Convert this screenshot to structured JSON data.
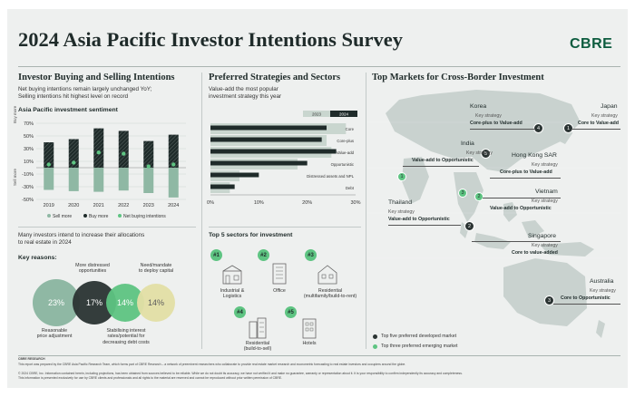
{
  "header": {
    "title": "2024 Asia Pacific Investor Intentions Survey",
    "logo": "CBRE"
  },
  "buying_selling": {
    "title": "Investor Buying and Selling Intentions",
    "subtitle_line1": "Net buying intentions remain largely unchanged YoY;",
    "subtitle_line2": "Selling intentions hit highest level on record",
    "chart_title": "Asia Pacific investment sentiment",
    "axis_top_label": "Buy more",
    "axis_bottom_label": "Sell more"
  },
  "intend": {
    "line1": "Many investors intend to increase their allocations",
    "line2": "to real estate in 2024",
    "key_reasons": "Key reasons:",
    "reasons": [
      {
        "value": "23%",
        "label_lines": [
          "Reasonable",
          "price adjustment"
        ]
      },
      {
        "value": "17%",
        "label_lines": [
          "More distressed",
          "opportunities"
        ]
      },
      {
        "value": "14%",
        "label_lines": [
          "Stabilising interest",
          "rates/potential for",
          "decreasing debt costs"
        ]
      },
      {
        "value": "14%",
        "label_lines": [
          "Need/mandate",
          "to deploy capital"
        ]
      }
    ]
  },
  "strategies": {
    "title": "Preferred Strategies and Sectors",
    "subtitle_line1": "Value-add the most popular",
    "subtitle_line2": "investment strategy this year",
    "legend": [
      "2023",
      "2024"
    ]
  },
  "sectors": {
    "title": "Top 5 sectors for investment",
    "items": [
      {
        "num": "#1",
        "label_lines": [
          "Industrial &",
          "Logistics"
        ]
      },
      {
        "num": "#2",
        "label_lines": [
          "Office"
        ]
      },
      {
        "num": "#3",
        "label_lines": [
          "Residential",
          "(multifamily/build-to-rent)"
        ]
      },
      {
        "num": "#4",
        "label_lines": [
          "Residential",
          "(build-to-sell)"
        ]
      },
      {
        "num": "#5",
        "label_lines": [
          "Hotels"
        ]
      }
    ]
  },
  "markets": {
    "title": "Top Markets for Cross-Border Investment",
    "key_strategy_label": "Key strategy",
    "items": [
      {
        "name": "Korea",
        "strategy": "Core-plus to Value-add",
        "rank": "4",
        "type": "developed"
      },
      {
        "name": "Japan",
        "strategy": "Core to Value-add",
        "rank": "1",
        "type": "developed"
      },
      {
        "name": "India",
        "strategy": "Value-add to Opportunistic",
        "rank": "1",
        "type": "emerging"
      },
      {
        "name": "Hong Kong SAR",
        "strategy": "Core-plus to Value-add",
        "rank": "5",
        "type": "developed"
      },
      {
        "name": "Vietnam",
        "strategy": "Value-add to Opportunistic",
        "rank": "2",
        "type": "emerging"
      },
      {
        "name": "Thailand",
        "strategy": "Value-add to Opportunistic",
        "rank": "3",
        "type": "emerging"
      },
      {
        "name": "Singapore",
        "strategy": "Core to value-added",
        "rank": "2",
        "type": "developed"
      },
      {
        "name": "Australia",
        "strategy": "Core to Opportunistic",
        "rank": "3",
        "type": "developed"
      }
    ],
    "legend": [
      "Top five preferred developed market",
      "Top three preferred emerging market"
    ]
  },
  "footer": {
    "source_label": "CBRE RESEARCH",
    "line1": "This report was prepared by the CBRE Asia Pacific Research Team, which forms part of CBRE Research – a network of preeminent researchers who collaborate to provide real estate market research and econometric forecasting to real estate investors and occupiers around the globe.",
    "line2": "© 2024 CBRE, Inc. Information contained herein, including projections, has been obtained from sources believed to be reliable. While we do not doubt its accuracy, we have not verified it and make no guarantee, warranty or representation about it. It is your responsibility to confirm independently its accuracy and completeness.",
    "line3": "This information is presented exclusively for use by CBRE clients and professionals and all rights to the material are reserved and cannot be reproduced without prior written permission of CBRE."
  },
  "colors": {
    "dark": "#2b3433",
    "green": "#5ec482",
    "sage": "#8fb8a4",
    "lightsage": "#c9d6cf",
    "brand": "#0d5c3f"
  },
  "chart_data": [
    {
      "type": "bar",
      "title": "Asia Pacific investment sentiment",
      "categories": [
        "2019",
        "2020",
        "2021",
        "2022",
        "2023",
        "2024"
      ],
      "yticks": [
        "70%",
        "50%",
        "30%",
        "10%",
        "-10%",
        "-30%",
        "-50%"
      ],
      "ylim": [
        -50,
        70
      ],
      "series": [
        {
          "name": "Sell more",
          "values": [
            -35,
            -37,
            -38,
            -36,
            -40,
            -47
          ]
        },
        {
          "name": "Buy more",
          "values": [
            40,
            45,
            62,
            58,
            42,
            52
          ]
        },
        {
          "name": "Net buying intentions",
          "values": [
            5,
            8,
            24,
            22,
            2,
            5
          ]
        }
      ],
      "legend": "bottom"
    },
    {
      "type": "bar",
      "orientation": "horizontal",
      "categories": [
        "Core",
        "Core-plus",
        "Value-add",
        "Opportunistic",
        "Distressed assets and NPL",
        "Debt"
      ],
      "xticks": [
        "0%",
        "10%",
        "20%",
        "30%"
      ],
      "xlim": [
        0,
        30
      ],
      "series": [
        {
          "name": "2023",
          "values": [
            28,
            24,
            25,
            18,
            6,
            4
          ]
        },
        {
          "name": "2024",
          "values": [
            24,
            23,
            26,
            20,
            10,
            5
          ]
        }
      ],
      "legend": "top-right"
    }
  ]
}
